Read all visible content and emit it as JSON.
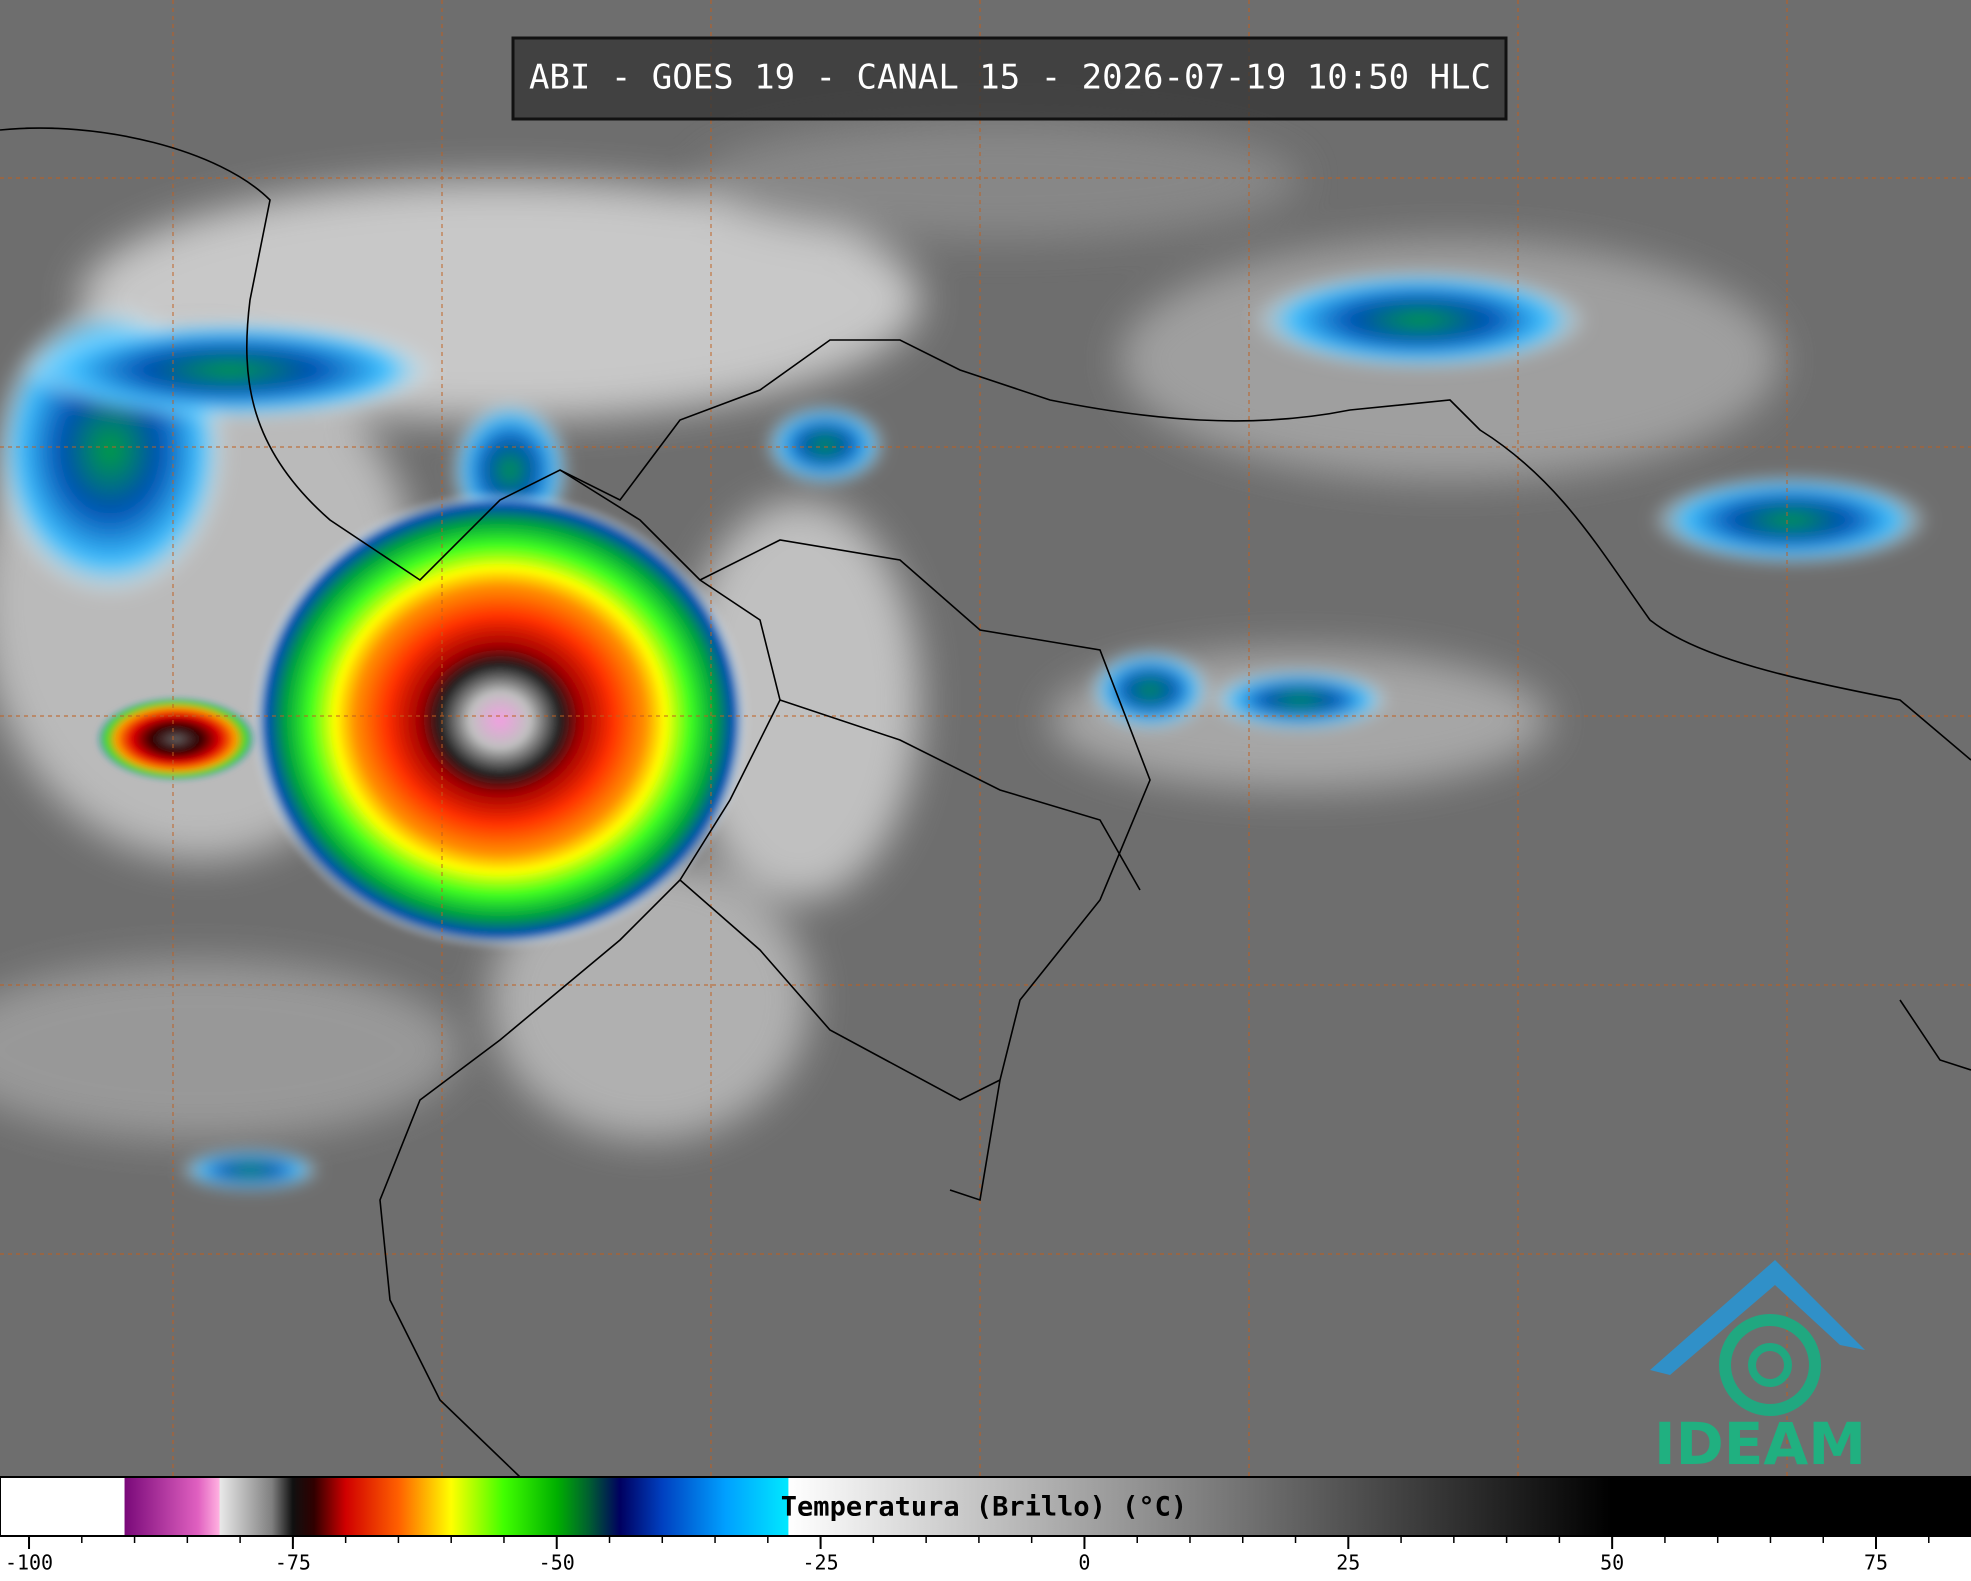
{
  "header": {
    "title": "ABI - GOES 19 - CANAL 15 - 2026-07-19 10:50 HLC"
  },
  "logo": {
    "text": "IDEAM"
  },
  "colorbar": {
    "label": "Temperatura (Brillo) (°C)",
    "xlim": [
      -102.75,
      84
    ],
    "ticks": [
      -100,
      -75,
      -50,
      -25,
      0,
      25,
      50,
      75
    ],
    "minor_step": 5,
    "stops": [
      {
        "value": -102.75,
        "color": "#ffffff"
      },
      {
        "value": -91,
        "color": "#ffffff"
      },
      {
        "value": -90.9,
        "color": "#7a0a7a"
      },
      {
        "value": -84,
        "color": "#e060c0"
      },
      {
        "value": -82,
        "color": "#ffb0e0"
      },
      {
        "value": -81.9,
        "color": "#e8e8e8"
      },
      {
        "value": -77,
        "color": "#808080"
      },
      {
        "value": -75,
        "color": "#101010"
      },
      {
        "value": -73,
        "color": "#300000"
      },
      {
        "value": -70,
        "color": "#d00000"
      },
      {
        "value": -65,
        "color": "#ff6000"
      },
      {
        "value": -60,
        "color": "#ffff00"
      },
      {
        "value": -55,
        "color": "#40ff00"
      },
      {
        "value": -50,
        "color": "#00b000"
      },
      {
        "value": -47,
        "color": "#006030"
      },
      {
        "value": -44,
        "color": "#000060"
      },
      {
        "value": -40,
        "color": "#0040c0"
      },
      {
        "value": -34,
        "color": "#00a0ff"
      },
      {
        "value": -28.1,
        "color": "#00e8ff"
      },
      {
        "value": -28,
        "color": "#ffffff"
      },
      {
        "value": 50,
        "color": "#000000"
      },
      {
        "value": 84,
        "color": "#000000"
      }
    ]
  }
}
